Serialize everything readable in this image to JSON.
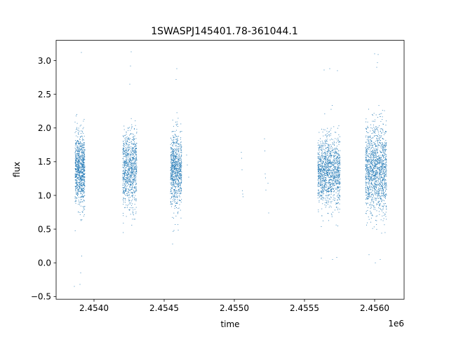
{
  "chart_data": {
    "type": "scatter",
    "title": "1SWASPJ145401.78-361044.1",
    "xlabel": "time",
    "ylabel": "flux",
    "x_offset_label": "1e6",
    "x_tick_labels": [
      "2.4540",
      "2.4545",
      "2.4550",
      "2.4555",
      "2.4560"
    ],
    "y_tick_labels": [
      "−0.5",
      "0.0",
      "0.5",
      "1.0",
      "1.5",
      "2.0",
      "2.5",
      "3.0"
    ],
    "xlim": [
      2453730,
      2456210
    ],
    "ylim": [
      -0.54,
      3.3
    ],
    "grid": false,
    "legend": "none",
    "marker_color": "#1f77b4",
    "series": [
      {
        "clusters": [
          {
            "x_start": 2453865,
            "x_end": 2453935,
            "y_center": 1.38,
            "y_spread": 0.26,
            "count": 900
          },
          {
            "x_start": 2454205,
            "x_end": 2454305,
            "y_center": 1.38,
            "y_spread": 0.28,
            "count": 900
          },
          {
            "x_start": 2454545,
            "x_end": 2454625,
            "y_center": 1.38,
            "y_spread": 0.27,
            "count": 850
          },
          {
            "x_start": 2455595,
            "x_end": 2455755,
            "y_center": 1.35,
            "y_spread": 0.26,
            "count": 1300
          },
          {
            "x_start": 2455935,
            "x_end": 2456085,
            "y_center": 1.38,
            "y_spread": 0.32,
            "count": 1400
          }
        ],
        "sparse_points": [
          {
            "x": 2454660,
            "y": 1.6
          },
          {
            "x": 2454665,
            "y": 1.45
          },
          {
            "x": 2454675,
            "y": 1.27
          },
          {
            "x": 2455050,
            "y": 1.64
          },
          {
            "x": 2455052,
            "y": 1.55
          },
          {
            "x": 2455055,
            "y": 1.38
          },
          {
            "x": 2455058,
            "y": 1.07
          },
          {
            "x": 2455060,
            "y": 1.02
          },
          {
            "x": 2455062,
            "y": 0.98
          },
          {
            "x": 2455215,
            "y": 1.84
          },
          {
            "x": 2455218,
            "y": 1.66
          },
          {
            "x": 2455220,
            "y": 1.32
          },
          {
            "x": 2455222,
            "y": 1.26
          },
          {
            "x": 2455225,
            "y": 1.08
          },
          {
            "x": 2455240,
            "y": 1.18
          },
          {
            "x": 2455245,
            "y": 0.74
          },
          {
            "x": 2453910,
            "y": 3.12
          },
          {
            "x": 2453900,
            "y": -0.32
          },
          {
            "x": 2453860,
            "y": -0.35
          },
          {
            "x": 2453905,
            "y": -0.15
          },
          {
            "x": 2453912,
            "y": 0.1
          },
          {
            "x": 2454265,
            "y": 3.13
          },
          {
            "x": 2454260,
            "y": 2.92
          },
          {
            "x": 2454255,
            "y": 2.65
          },
          {
            "x": 2454590,
            "y": 2.88
          },
          {
            "x": 2454585,
            "y": 2.72
          },
          {
            "x": 2454560,
            "y": 0.28
          },
          {
            "x": 2454570,
            "y": 0.48
          },
          {
            "x": 2455640,
            "y": 2.86
          },
          {
            "x": 2455680,
            "y": 2.88
          },
          {
            "x": 2455735,
            "y": 2.85
          },
          {
            "x": 2455620,
            "y": 0.07
          },
          {
            "x": 2455700,
            "y": 0.05
          },
          {
            "x": 2455730,
            "y": 0.08
          },
          {
            "x": 2456000,
            "y": 3.1
          },
          {
            "x": 2456025,
            "y": 3.09
          },
          {
            "x": 2456020,
            "y": 2.97
          },
          {
            "x": 2456015,
            "y": 2.9
          },
          {
            "x": 2455960,
            "y": 0.12
          },
          {
            "x": 2456005,
            "y": 0.0
          },
          {
            "x": 2456040,
            "y": 0.05
          }
        ]
      }
    ]
  }
}
